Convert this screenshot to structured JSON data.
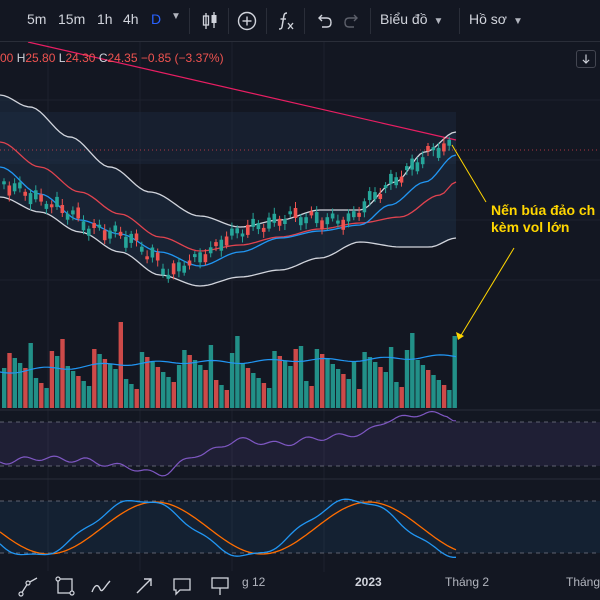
{
  "toolbar": {
    "timeframes": [
      "5m",
      "15m",
      "1h",
      "4h",
      "D"
    ],
    "active_timeframe": "D",
    "chart_menu": "Biểu đồ",
    "profile_menu": "Hồ sơ"
  },
  "legend": {
    "open_value": "00",
    "high_key": "H",
    "high_value": "25.80",
    "low_key": "L",
    "low_value": "24.30",
    "close_key": "C",
    "close_value": "24.35",
    "change": "−0.85 (−3.37%)"
  },
  "annotation": {
    "line1": "Nến búa đảo ch",
    "line2": "kèm vol lớn"
  },
  "x_axis": {
    "label_dec": "g 12",
    "label_2023": "2023",
    "label_feb": "Tháng 2",
    "label_next": "Tháng"
  },
  "colors": {
    "background": "#131722",
    "up": "#26a69a",
    "down": "#ef5350",
    "bollinger": "#d1d4dc",
    "ma_fast": "#2196f3",
    "ma_slow": "#e0434f",
    "trendline": "#e91e63",
    "annotation": "#ffd600",
    "rsi": "#7e57c2",
    "stoch_k": "#2196f3",
    "stoch_d": "#ff6d00"
  },
  "icons": {
    "toolbar": [
      "candles-icon",
      "add-indicator-icon",
      "fx-indicator-icon",
      "undo-icon",
      "redo-icon"
    ],
    "drawing": [
      "path-icon",
      "rectangle-icon",
      "brush-icon",
      "arrow-icon",
      "callout-icon",
      "flag-icon"
    ]
  }
}
